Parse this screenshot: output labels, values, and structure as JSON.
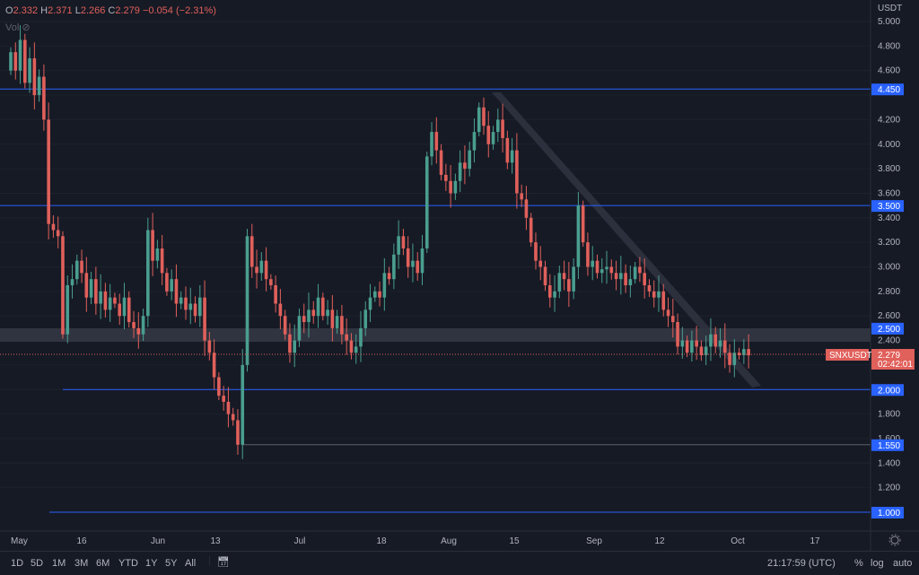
{
  "legend": {
    "o_label": "O",
    "o": "2.332",
    "h_label": "H",
    "h": "2.371",
    "l_label": "L",
    "l": "2.266",
    "c_label": "C",
    "c": "2.279",
    "change": "−0.054 (−2.31%)",
    "vol_label": "Vol"
  },
  "price_axis": {
    "currency": "USDT",
    "ticks": [
      "5.000",
      "4.800",
      "4.600",
      "4.200",
      "4.000",
      "3.800",
      "3.600",
      "3.400",
      "3.200",
      "3.000",
      "2.800",
      "2.600",
      "2.400",
      "1.800",
      "1.600",
      "1.400",
      "1.200"
    ]
  },
  "levels": [
    {
      "label": "4.450",
      "value": 4.45
    },
    {
      "label": "3.500",
      "value": 3.5
    },
    {
      "label": "2.500",
      "value": 2.5
    },
    {
      "label": "2.000",
      "value": 2.0
    },
    {
      "label": "1.550",
      "value": 1.55
    },
    {
      "label": "1.000",
      "value": 1.0
    }
  ],
  "symbol": {
    "name": "SNXUSDT",
    "price": "2.279",
    "countdown": "02:42:01"
  },
  "time_axis": [
    "May",
    "16",
    "Jun",
    "13",
    "Jul",
    "18",
    "Aug",
    "15",
    "Sep",
    "12",
    "Oct",
    "17"
  ],
  "toolbar": {
    "ranges": [
      "1D",
      "5D",
      "1M",
      "3M",
      "6M",
      "YTD",
      "1Y",
      "5Y",
      "All"
    ],
    "clock": "21:17:59 (UTC)",
    "percent": "%",
    "log": "log",
    "auto": "auto"
  },
  "colors": {
    "up": "#4a9e8f",
    "down": "#e0605b",
    "level": "#2962ff",
    "bg": "#161a25"
  },
  "chart_data": {
    "type": "candlestick",
    "start": "May 1",
    "first_open": 4.6,
    "closes": [
      4.75,
      4.6,
      4.85,
      4.5,
      4.7,
      4.4,
      4.55,
      4.2,
      3.35,
      3.3,
      3.25,
      2.45,
      2.85,
      2.9,
      3.05,
      2.95,
      2.75,
      2.9,
      2.7,
      2.8,
      2.65,
      2.75,
      2.7,
      2.6,
      2.75,
      2.55,
      2.5,
      2.45,
      2.6,
      3.3,
      3.05,
      3.15,
      2.95,
      2.8,
      2.9,
      2.7,
      2.75,
      2.65,
      2.7,
      2.6,
      2.75,
      2.4,
      2.3,
      2.1,
      1.95,
      1.9,
      1.8,
      1.75,
      1.55,
      2.2,
      3.25,
      3.0,
      2.95,
      3.05,
      2.9,
      2.85,
      2.7,
      2.6,
      2.45,
      2.3,
      2.4,
      2.6,
      2.55,
      2.65,
      2.6,
      2.75,
      2.6,
      2.65,
      2.5,
      2.6,
      2.45,
      2.4,
      2.3,
      2.35,
      2.5,
      2.65,
      2.75,
      2.8,
      2.75,
      2.95,
      2.9,
      3.1,
      3.25,
      3.15,
      3.0,
      3.05,
      2.95,
      3.15,
      3.9,
      4.1,
      3.95,
      3.75,
      3.7,
      3.6,
      3.7,
      3.85,
      3.8,
      3.95,
      4.1,
      4.3,
      4.15,
      4.0,
      4.1,
      4.2,
      4.05,
      3.85,
      3.95,
      3.6,
      3.55,
      3.4,
      3.2,
      3.05,
      3.0,
      2.85,
      2.75,
      2.8,
      2.95,
      2.9,
      2.8,
      3.0,
      3.5,
      3.2,
      3.0,
      3.05,
      2.95,
      2.98,
      3.0,
      2.95,
      2.9,
      2.95,
      2.85,
      2.9,
      3.0,
      2.95,
      2.85,
      2.8,
      2.75,
      2.8,
      2.65,
      2.6,
      2.55,
      2.35,
      2.4,
      2.3,
      2.4,
      2.35,
      2.28,
      2.35,
      2.45,
      2.35,
      2.4,
      2.3,
      2.2,
      2.3,
      2.28,
      2.33,
      2.279
    ],
    "ylim": [
      0.85,
      5.1
    ]
  }
}
